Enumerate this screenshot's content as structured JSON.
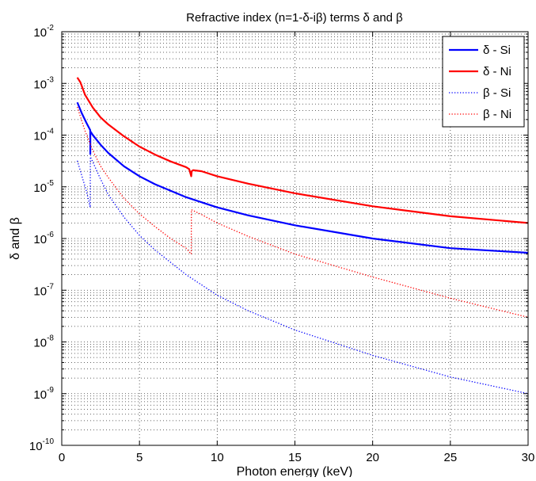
{
  "chart_data": {
    "type": "line",
    "title": "Refractive index (n=1-δ-iβ) terms δ and β",
    "xlabel": "Photon energy (keV)",
    "ylabel": "δ and β",
    "xlim": [
      0,
      30
    ],
    "ylim": [
      1e-10,
      0.01
    ],
    "yscale": "log",
    "grid": "on (major solid-dotted, minor dotted)",
    "legend_position": "top-right",
    "x_ticks": [
      "0",
      "5",
      "10",
      "15",
      "20",
      "25",
      "30"
    ],
    "y_tick_base": "10",
    "y_tick_exponents": [
      "-10",
      "-9",
      "-8",
      "-7",
      "-6",
      "-5",
      "-4",
      "-3",
      "-2"
    ],
    "series": [
      {
        "name": "δ - Si",
        "color": "#0000ff",
        "style": "solid",
        "x": [
          1.0,
          1.3,
          1.6,
          1.83,
          1.838,
          1.839,
          1.86,
          1.9,
          2.0,
          2.5,
          3,
          4,
          5,
          6,
          8,
          10,
          12,
          15,
          20,
          25,
          30
        ],
        "y": [
          0.00043,
          0.00026,
          0.00017,
          0.000125,
          4.3e-05,
          0.00012,
          0.000115,
          0.000111,
          0.0001,
          6.5e-05,
          4.5e-05,
          2.5e-05,
          1.6e-05,
          1.12e-05,
          6.3e-06,
          4e-06,
          2.8e-06,
          1.8e-06,
          1e-06,
          6.5e-07,
          5.3e-07
        ]
      },
      {
        "name": "δ - Ni",
        "color": "#ff0000",
        "style": "solid",
        "x": [
          1.0,
          1.2,
          1.5,
          2,
          2.5,
          3,
          4,
          5,
          6,
          7,
          8,
          8.2,
          8.33,
          8.36,
          8.45,
          9,
          10,
          12,
          15,
          20,
          25,
          30
        ],
        "y": [
          0.0013,
          0.00105,
          0.0006,
          0.00034,
          0.00022,
          0.00016,
          9.5e-05,
          6e-05,
          4.2e-05,
          3.1e-05,
          2.4e-05,
          2.2e-05,
          1.6e-05,
          2e-05,
          2.1e-05,
          2e-05,
          1.6e-05,
          1.15e-05,
          7.5e-06,
          4.2e-06,
          2.7e-06,
          2e-06
        ]
      },
      {
        "name": "β - Si",
        "color": "#0000ff",
        "style": "dotted",
        "x": [
          1.0,
          1.3,
          1.6,
          1.83,
          1.84,
          2.0,
          2.5,
          3,
          4,
          5,
          6,
          8,
          10,
          12,
          15,
          20,
          25,
          30
        ],
        "y": [
          3.2e-05,
          1.6e-05,
          8e-06,
          4e-06,
          3.8e-05,
          3e-05,
          1.4e-05,
          7e-06,
          2.6e-06,
          1.15e-06,
          6e-07,
          2e-07,
          8e-08,
          4e-08,
          1.7e-08,
          5.5e-09,
          2.1e-09,
          1e-09
        ]
      },
      {
        "name": "β - Ni",
        "color": "#ff0000",
        "style": "dotted",
        "x": [
          1.0,
          1.5,
          2,
          2.5,
          3,
          4,
          5,
          6,
          7,
          8,
          8.33,
          8.34,
          9,
          10,
          12,
          15,
          20,
          25,
          30
        ],
        "y": [
          0.00035,
          0.00012,
          5e-05,
          2.5e-05,
          1.5e-05,
          6e-06,
          3e-06,
          1.7e-06,
          1e-06,
          6.5e-07,
          5e-07,
          3.6e-06,
          2.9e-06,
          2e-06,
          1.1e-06,
          5e-07,
          1.8e-07,
          7e-08,
          3e-08
        ]
      }
    ]
  }
}
